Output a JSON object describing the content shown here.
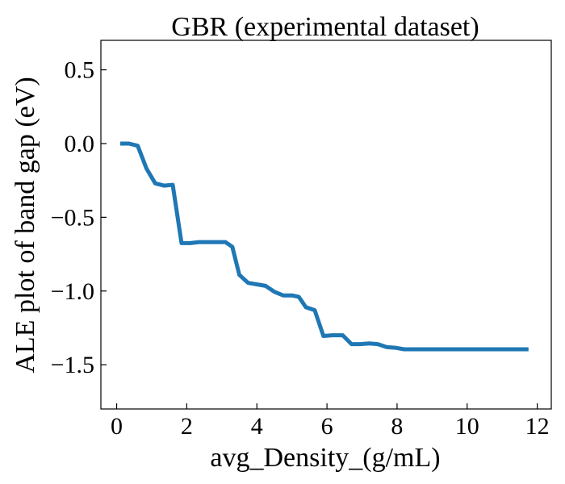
{
  "chart_data": {
    "type": "line",
    "title": "GBR (experimental dataset)",
    "xlabel": "avg_Density_(g/mL)",
    "ylabel": "ALE plot of band gap (eV)",
    "xlim": [
      -0.45,
      12.4
    ],
    "ylim": [
      -1.8,
      0.7
    ],
    "x_ticks": [
      0,
      2,
      4,
      6,
      8,
      10,
      12
    ],
    "y_ticks": [
      0.5,
      0.0,
      -0.5,
      -1.0,
      -1.5
    ],
    "x_tick_labels": [
      "0",
      "2",
      "4",
      "6",
      "8",
      "10",
      "12"
    ],
    "y_tick_labels": [
      "0.5",
      "0.0",
      "−0.5",
      "−1.0",
      "−1.5"
    ],
    "grid": false,
    "series": [
      {
        "color": "#1f77b4",
        "x": [
          0.1,
          0.35,
          0.6,
          0.85,
          1.1,
          1.35,
          1.6,
          1.85,
          2.1,
          2.35,
          2.6,
          2.85,
          3.1,
          3.3,
          3.5,
          3.75,
          4.0,
          4.25,
          4.5,
          4.75,
          5.0,
          5.2,
          5.4,
          5.65,
          5.9,
          6.15,
          6.45,
          6.7,
          6.95,
          7.2,
          7.45,
          7.7,
          7.95,
          8.2,
          9.0,
          10.0,
          11.0,
          11.75
        ],
        "y": [
          0.0,
          0.0,
          -0.015,
          -0.17,
          -0.27,
          -0.285,
          -0.28,
          -0.675,
          -0.675,
          -0.668,
          -0.668,
          -0.668,
          -0.668,
          -0.7,
          -0.89,
          -0.945,
          -0.955,
          -0.965,
          -1.005,
          -1.03,
          -1.03,
          -1.04,
          -1.11,
          -1.13,
          -1.305,
          -1.3,
          -1.3,
          -1.36,
          -1.36,
          -1.355,
          -1.36,
          -1.38,
          -1.385,
          -1.395,
          -1.395,
          -1.395,
          -1.395,
          -1.395
        ]
      }
    ]
  }
}
